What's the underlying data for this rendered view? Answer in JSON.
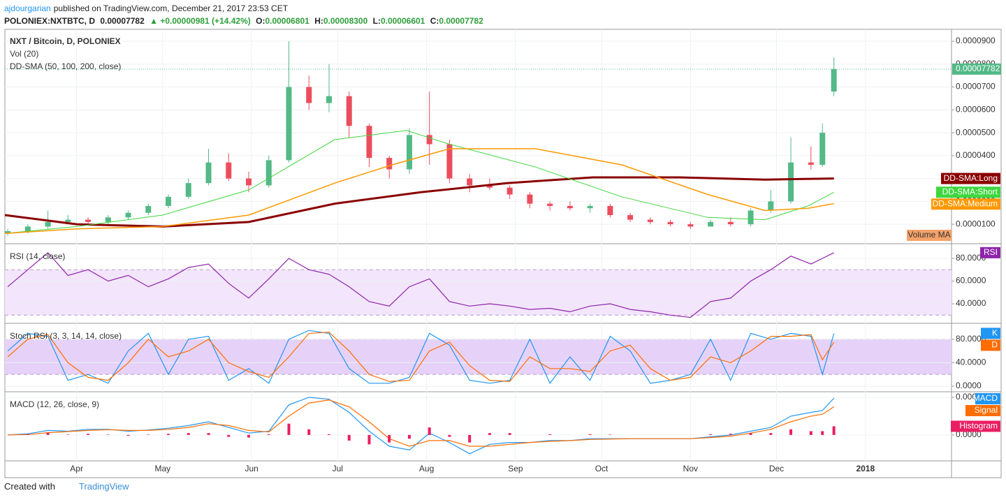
{
  "header": {
    "author": "ajdourgarian",
    "published": "published on TradingView.com, December 21, 2017 23:53 CET",
    "symbol": "POLONIEX:NXTBTC, D",
    "price": "0.00007782",
    "change": "▲ +0.00000981 (+14.42%)",
    "o_label": "O:",
    "o": "0.00006801",
    "h_label": "H:",
    "h": "0.00008300",
    "l_label": "L:",
    "l": "0.00006601",
    "c_label": "C:",
    "c": "0.00007782"
  },
  "footer": {
    "created": "Created with",
    "brand": "TradingView"
  },
  "chart_data": [
    {
      "type": "candlestick",
      "titles": [
        "NXT / Bitcoin, D, POLONIEX",
        "Vol (20)",
        "DD-SMA (50, 100, 200, close)"
      ],
      "volume_ma_label": "Volume MA",
      "up_color": "#53b987",
      "down_color": "#eb4d5c",
      "xlim": [
        -25,
        305
      ],
      "xticks": [
        {
          "value": 0,
          "label": "Apr"
        },
        {
          "value": 30,
          "label": "May"
        },
        {
          "value": 61,
          "label": "Jun"
        },
        {
          "value": 91,
          "label": "Jul"
        },
        {
          "value": 122,
          "label": "Aug"
        },
        {
          "value": 153,
          "label": "Sep"
        },
        {
          "value": 183,
          "label": "Oct"
        },
        {
          "value": 214,
          "label": "Nov"
        },
        {
          "value": 244,
          "label": "Dec"
        },
        {
          "value": 275,
          "label": "2018"
        }
      ],
      "ylim": [
        1.8e-06,
        9.52e-05
      ],
      "yticks": [
        {
          "value": 1e-05,
          "label": "0.0000100"
        },
        {
          "value": 2e-05,
          "label": "0.0000200"
        },
        {
          "value": 3e-05,
          "label": "0.0000300"
        },
        {
          "value": 4e-05,
          "label": "0.0000400"
        },
        {
          "value": 5e-05,
          "label": "0.0000500"
        },
        {
          "value": 6e-05,
          "label": "0.0000600"
        },
        {
          "value": 7e-05,
          "label": "0.0000700"
        },
        {
          "value": 8e-05,
          "label": "0.0000800"
        },
        {
          "value": 9e-05,
          "label": "0.0000900"
        }
      ],
      "x": [
        -24,
        -17,
        -10,
        -3,
        4,
        11,
        18,
        25,
        32,
        39,
        46,
        53,
        60,
        67,
        74,
        81,
        88,
        95,
        102,
        109,
        116,
        123,
        130,
        137,
        144,
        151,
        158,
        165,
        172,
        179,
        186,
        193,
        200,
        207,
        214,
        221,
        228,
        235,
        242,
        249,
        256,
        260,
        264
      ],
      "open": [
        6e-06,
        7e-06,
        9e-06,
        1.1e-05,
        1.2e-05,
        1.1e-05,
        1.3e-05,
        1.5e-05,
        1.8e-05,
        2.2e-05,
        2.8e-05,
        3.7e-05,
        3e-05,
        2.7e-05,
        3.8e-05,
        7e-05,
        6.3e-05,
        6.6e-05,
        5.3e-05,
        3.9e-05,
        3.4e-05,
        4.9e-05,
        4.5e-05,
        3e-05,
        2.7e-05,
        2.6e-05,
        2.3e-05,
        1.9e-05,
        1.8e-05,
        1.7e-05,
        1.8e-05,
        1.4e-05,
        1.2e-05,
        1.1e-05,
        1e-05,
        9e-06,
        1.1e-05,
        1e-05,
        1.6e-05,
        2e-05,
        3.7e-05,
        3.6e-05,
        6.801e-05
      ],
      "high": [
        8e-06,
        1e-05,
        1.6e-05,
        1.4e-05,
        1.3e-05,
        1.4e-05,
        1.6e-05,
        1.9e-05,
        2.3e-05,
        3e-05,
        4.3e-05,
        4.1e-05,
        3.3e-05,
        4e-05,
        9e-05,
        7.5e-05,
        8e-05,
        6.8e-05,
        5.4e-05,
        4e-05,
        5.2e-05,
        6.8e-05,
        4.7e-05,
        3.2e-05,
        3e-05,
        2.7e-05,
        2.4e-05,
        2e-05,
        2e-05,
        1.9e-05,
        1.9e-05,
        1.5e-05,
        1.3e-05,
        1.2e-05,
        1.1e-05,
        1.2e-05,
        1.3e-05,
        1.7e-05,
        2.5e-05,
        4.8e-05,
        4.4e-05,
        5.4e-05,
        8.3e-05
      ],
      "low": [
        5e-06,
        6e-06,
        8e-06,
        1e-05,
        1e-05,
        1e-05,
        1.2e-05,
        1.4e-05,
        1.7e-05,
        2.1e-05,
        2.7e-05,
        2.9e-05,
        2.4e-05,
        2.6e-05,
        3.7e-05,
        6e-05,
        5.9e-05,
        4.8e-05,
        3.5e-05,
        3e-05,
        3.2e-05,
        3.6e-05,
        2.8e-05,
        2.4e-05,
        2.5e-05,
        2.1e-05,
        1.7e-05,
        1.6e-05,
        1.6e-05,
        1.5e-05,
        1.3e-05,
        1.1e-05,
        1e-05,
        9e-06,
        8e-06,
        9e-06,
        9e-06,
        9e-06,
        1.5e-05,
        1.9e-05,
        3.4e-05,
        3.5e-05,
        6.601e-05
      ],
      "close": [
        7e-06,
        9e-06,
        1.1e-05,
        1.2e-05,
        1.1e-05,
        1.3e-05,
        1.5e-05,
        1.8e-05,
        2.2e-05,
        2.8e-05,
        3.7e-05,
        3e-05,
        2.7e-05,
        3.8e-05,
        7e-05,
        6.3e-05,
        6.6e-05,
        5.3e-05,
        3.9e-05,
        3.4e-05,
        4.9e-05,
        4.5e-05,
        3e-05,
        2.7e-05,
        2.6e-05,
        2.3e-05,
        1.9e-05,
        1.8e-05,
        1.7e-05,
        1.8e-05,
        1.4e-05,
        1.2e-05,
        1.1e-05,
        1e-05,
        9e-06,
        1.1e-05,
        1e-05,
        1.6e-05,
        2e-05,
        3.7e-05,
        3.6e-05,
        5e-05,
        7.782e-05
      ],
      "series": [
        {
          "name": "DD-SMA:Long",
          "color": "#8b0000",
          "width": 3,
          "x": [
            -25,
            0,
            30,
            60,
            90,
            120,
            150,
            180,
            210,
            240,
            264
          ],
          "values": [
            1.4e-05,
            1e-05,
            9e-06,
            1.1e-05,
            1.9e-05,
            2.4e-05,
            2.8e-05,
            3.05e-05,
            3.05e-05,
            2.95e-05,
            3e-05
          ]
        },
        {
          "name": "DD-SMA:Short",
          "color": "#3fd63f",
          "width": 1,
          "x": [
            -25,
            0,
            30,
            60,
            90,
            115,
            130,
            160,
            190,
            220,
            240,
            255,
            264
          ],
          "values": [
            6e-06,
            9e-06,
            1.4e-05,
            2.5e-05,
            4.7e-05,
            5.1e-05,
            4.5e-05,
            3.5e-05,
            2.2e-05,
            1.3e-05,
            1.2e-05,
            1.8e-05,
            2.4e-05
          ]
        },
        {
          "name": "DD-SMA:Medium",
          "color": "#ff9800",
          "width": 1.5,
          "x": [
            -25,
            0,
            30,
            60,
            90,
            110,
            130,
            160,
            190,
            220,
            240,
            255,
            264
          ],
          "values": [
            6e-06,
            8e-06,
            9e-06,
            1.4e-05,
            2.8e-05,
            3.6e-05,
            4.3e-05,
            4.3e-05,
            3.6e-05,
            2.3e-05,
            1.6e-05,
            1.7e-05,
            1.9e-05
          ]
        }
      ]
    },
    {
      "type": "line",
      "titles": [
        "RSI (14, close)"
      ],
      "ylim": [
        23.4,
        92.3
      ],
      "yticks": [
        {
          "value": 40,
          "label": "40.0000"
        },
        {
          "value": 60,
          "label": "60.0000"
        },
        {
          "value": 80,
          "label": "80.0000"
        }
      ],
      "bands": [
        {
          "from": 30,
          "to": 70,
          "color": "#f3e5fc"
        }
      ],
      "x": [
        -24,
        -17,
        -10,
        -3,
        4,
        11,
        18,
        25,
        32,
        39,
        46,
        53,
        60,
        67,
        74,
        81,
        88,
        95,
        102,
        109,
        116,
        123,
        130,
        137,
        144,
        151,
        158,
        165,
        172,
        179,
        186,
        193,
        200,
        207,
        214,
        221,
        228,
        235,
        242,
        249,
        256,
        260,
        264
      ],
      "series": [
        {
          "name": "RSI",
          "color": "#8e24aa",
          "values": [
            55,
            70,
            85,
            65,
            70,
            60,
            65,
            55,
            62,
            72,
            75,
            58,
            45,
            62,
            80,
            70,
            66,
            55,
            42,
            38,
            55,
            62,
            42,
            38,
            40,
            38,
            35,
            36,
            33,
            38,
            40,
            35,
            33,
            30,
            28,
            42,
            45,
            60,
            70,
            82,
            75,
            80,
            85
          ]
        }
      ]
    },
    {
      "type": "line",
      "titles": [
        "Stoch RSI (3, 3, 14, 14, close)"
      ],
      "ylim": [
        -8.4,
        106
      ],
      "yticks": [
        {
          "value": 0,
          "label": "0.0000"
        },
        {
          "value": 40,
          "label": "40.0000"
        },
        {
          "value": 80,
          "label": "80.0000"
        }
      ],
      "bands": [
        {
          "from": 20,
          "to": 80,
          "color": "#e6d2f8"
        }
      ],
      "x": [
        -24,
        -17,
        -10,
        -3,
        4,
        11,
        18,
        25,
        32,
        39,
        46,
        53,
        60,
        67,
        74,
        81,
        88,
        95,
        102,
        109,
        116,
        123,
        130,
        137,
        144,
        151,
        158,
        165,
        172,
        179,
        186,
        193,
        200,
        207,
        214,
        221,
        228,
        235,
        242,
        249,
        256,
        260,
        264
      ],
      "series": [
        {
          "name": "K",
          "color": "#2196f3",
          "values": [
            60,
            90,
            85,
            10,
            20,
            5,
            60,
            90,
            20,
            80,
            85,
            10,
            30,
            5,
            80,
            95,
            90,
            30,
            5,
            5,
            15,
            90,
            70,
            10,
            5,
            10,
            80,
            5,
            50,
            10,
            85,
            60,
            5,
            10,
            20,
            80,
            10,
            90,
            80,
            90,
            85,
            20,
            90
          ]
        },
        {
          "name": "D",
          "color": "#ff6d00",
          "values": [
            50,
            80,
            88,
            40,
            15,
            10,
            40,
            80,
            50,
            60,
            80,
            40,
            25,
            15,
            50,
            90,
            92,
            60,
            20,
            8,
            10,
            60,
            75,
            35,
            10,
            8,
            50,
            30,
            30,
            25,
            60,
            70,
            30,
            10,
            15,
            50,
            40,
            60,
            85,
            85,
            88,
            45,
            75
          ]
        }
      ]
    },
    {
      "type": "line",
      "titles": [
        "MACD (12, 26, close, 9)"
      ],
      "ylim": [
        -6.9e-06,
        1.13e-05
      ],
      "yticks": [
        {
          "value": 0,
          "label": "0.0000"
        },
        {
          "value": 1e-05,
          "label": "0.0000"
        }
      ],
      "x": [
        -24,
        -17,
        -10,
        -3,
        4,
        11,
        18,
        25,
        32,
        39,
        46,
        53,
        60,
        67,
        74,
        81,
        88,
        95,
        102,
        109,
        116,
        123,
        130,
        137,
        144,
        151,
        158,
        165,
        172,
        179,
        186,
        193,
        200,
        207,
        214,
        221,
        228,
        235,
        242,
        249,
        256,
        260,
        264
      ],
      "series": [
        {
          "name": "MACD",
          "color": "#2196f3",
          "values": [
            0,
            3e-07,
            1.2e-06,
            1e-06,
            1.5e-06,
            1.5e-06,
            1e-06,
            1.3e-06,
            1.8e-06,
            2.5e-06,
            3.5e-06,
            2e-06,
            5e-07,
            1e-06,
            8e-06,
            1e-05,
            9.5e-06,
            6e-06,
            1e-06,
            -3e-06,
            -4e-06,
            5e-07,
            -2e-06,
            -5e-06,
            -2.5e-06,
            -2e-06,
            -2e-06,
            -1.5e-06,
            -1.5e-06,
            -1e-06,
            -1e-06,
            -1e-06,
            -1e-06,
            -1e-06,
            -1e-06,
            -5e-07,
            0,
            1e-06,
            2e-06,
            5e-06,
            6e-06,
            6.5e-06,
            9.8e-06
          ]
        },
        {
          "name": "Signal",
          "color": "#ff6d00",
          "values": [
            0,
            1e-07,
            6e-07,
            9e-07,
            1.2e-06,
            1.4e-06,
            1.2e-06,
            1.2e-06,
            1.5e-06,
            2e-06,
            3e-06,
            2.5e-06,
            1.2e-06,
            8e-07,
            5e-06,
            8.5e-06,
            9.3e-06,
            7.5e-06,
            3.5e-06,
            -1e-06,
            -3e-06,
            -1.5e-06,
            -1.5e-06,
            -3e-06,
            -3e-06,
            -2.5e-06,
            -2e-06,
            -1.7e-06,
            -1.5e-06,
            -1.2e-06,
            -1.1e-06,
            -1e-06,
            -1e-06,
            -1e-06,
            -1e-06,
            -7e-07,
            -3e-07,
            5e-07,
            1.5e-06,
            3.5e-06,
            5e-06,
            5.5e-06,
            7.5e-06
          ]
        },
        {
          "name": "Histogram",
          "color": "#e91e63",
          "type": "bar",
          "values": [
            0,
            2e-07,
            6e-07,
            1e-07,
            3e-07,
            1e-07,
            -2e-07,
            1e-07,
            3e-07,
            5e-07,
            5e-07,
            -5e-07,
            -7e-07,
            2e-07,
            3e-06,
            1.5e-06,
            2e-07,
            -1.5e-06,
            -2.5e-06,
            -2e-06,
            -1e-06,
            2e-06,
            -5e-07,
            -2e-06,
            5e-07,
            5e-07,
            0,
            2e-07,
            0,
            2e-07,
            1e-07,
            0,
            0,
            0,
            0,
            2e-07,
            3e-07,
            5e-07,
            5e-07,
            1.5e-06,
            1e-06,
            1e-06,
            2.3e-06
          ]
        }
      ]
    }
  ]
}
